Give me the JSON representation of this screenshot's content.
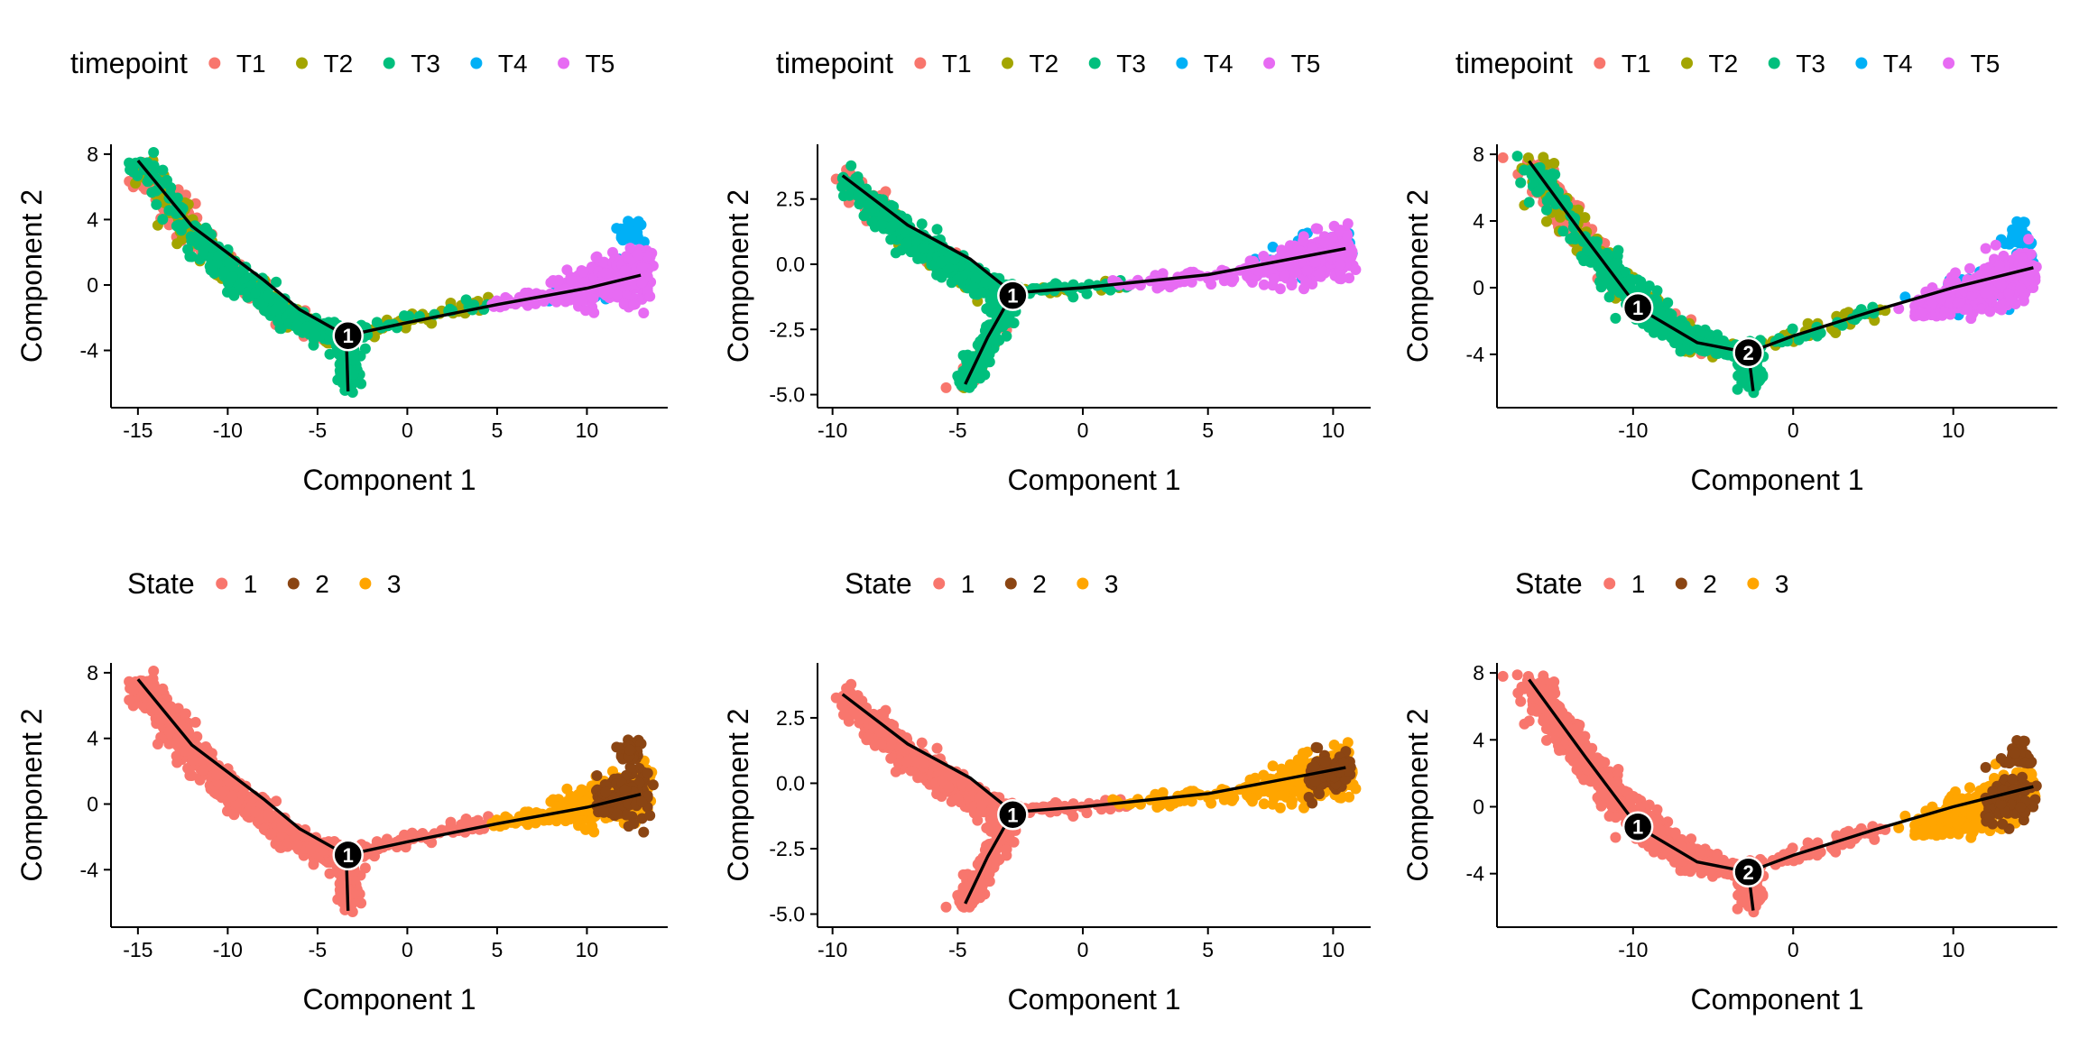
{
  "colors": {
    "T1": "#F8766D",
    "T2": "#A3A500",
    "T3": "#00BF7D",
    "T4": "#00B0F6",
    "T5": "#E76BF3",
    "state_1": "#F8766D",
    "state_2": "#8B4513",
    "state_3": "#FFA500"
  },
  "chart_data": [
    {
      "type": "scatter",
      "variant": "A",
      "color_by": "timepoint",
      "legend_title": "timepoint",
      "legend_position": "top",
      "legend_entries": [
        "T1",
        "T2",
        "T3",
        "T4",
        "T5"
      ],
      "xlabel": "Component 1",
      "ylabel": "Component 2",
      "xlim": [
        -16.5,
        14.5
      ],
      "ylim": [
        -7.5,
        8.6
      ],
      "x_ticks": [
        -15,
        -10,
        -5,
        0,
        5,
        10
      ],
      "x_tick_labels": [
        "-15",
        "-10",
        "-5",
        "0",
        "5",
        "10"
      ],
      "y_ticks": [
        -4,
        0,
        4,
        8
      ],
      "y_tick_labels": [
        "-4",
        "0",
        "4",
        "8"
      ],
      "trajectory": [
        [
          -15,
          7.6
        ],
        [
          -12,
          3.6
        ],
        [
          -8,
          0.3
        ],
        [
          -6,
          -1.5
        ],
        [
          -3.4,
          -3.1
        ],
        [
          0,
          -2.3
        ],
        [
          5,
          -1.2
        ],
        [
          10,
          -0.2
        ],
        [
          13,
          0.6
        ]
      ],
      "side_branch": [
        [
          -3.4,
          -3.1
        ],
        [
          -3.3,
          -6.5
        ]
      ],
      "branch_points": [
        {
          "label": "1",
          "x": -3.3,
          "y": -3.1
        }
      ]
    },
    {
      "type": "scatter",
      "variant": "B",
      "color_by": "timepoint",
      "legend_title": "timepoint",
      "legend_position": "top",
      "legend_entries": [
        "T1",
        "T2",
        "T3",
        "T4",
        "T5"
      ],
      "xlabel": "Component 1",
      "ylabel": "Component 2",
      "xlim": [
        -10.6,
        11.5
      ],
      "ylim": [
        -5.5,
        4.6
      ],
      "x_ticks": [
        -10,
        -5,
        0,
        5,
        10
      ],
      "x_tick_labels": [
        "-10",
        "-5",
        "0",
        "5",
        "10"
      ],
      "y_ticks": [
        -5,
        -2.5,
        0,
        2.5
      ],
      "y_tick_labels": [
        "-5.0",
        "-2.5",
        "0.0",
        "2.5"
      ],
      "trajectory": [
        [
          -9.6,
          3.4
        ],
        [
          -7,
          1.5
        ],
        [
          -4.5,
          0.2
        ],
        [
          -2.8,
          -1.1
        ],
        [
          0,
          -0.9
        ],
        [
          5,
          -0.4
        ],
        [
          10.5,
          0.6
        ]
      ],
      "side_branch": [
        [
          -2.8,
          -1.1
        ],
        [
          -3.8,
          -2.8
        ],
        [
          -4.7,
          -4.6
        ]
      ],
      "branch_points": [
        {
          "label": "1",
          "x": -2.8,
          "y": -1.2
        }
      ]
    },
    {
      "type": "scatter",
      "variant": "C",
      "color_by": "timepoint",
      "legend_title": "timepoint",
      "legend_position": "top",
      "legend_entries": [
        "T1",
        "T2",
        "T3",
        "T4",
        "T5"
      ],
      "xlabel": "Component 1",
      "ylabel": "Component 2",
      "xlim": [
        -18.5,
        16.5
      ],
      "ylim": [
        -7.2,
        8.6
      ],
      "x_ticks": [
        -10,
        0,
        10
      ],
      "x_tick_labels": [
        "-10",
        "0",
        "10"
      ],
      "y_ticks": [
        -4,
        0,
        4,
        8
      ],
      "y_tick_labels": [
        "-4",
        "0",
        "4",
        "8"
      ],
      "trajectory": [
        [
          -16.5,
          7.6
        ],
        [
          -13,
          3
        ],
        [
          -9.7,
          -1.2
        ],
        [
          -6,
          -3.3
        ],
        [
          -2.8,
          -3.9
        ],
        [
          0,
          -2.9
        ],
        [
          5,
          -1.4
        ],
        [
          10,
          0
        ],
        [
          15,
          1.2
        ]
      ],
      "side_branch": [
        [
          -2.8,
          -3.9
        ],
        [
          -2.5,
          -6.2
        ]
      ],
      "branch_points": [
        {
          "label": "1",
          "x": -9.7,
          "y": -1.2
        },
        {
          "label": "2",
          "x": -2.8,
          "y": -3.9
        }
      ]
    },
    {
      "type": "scatter",
      "variant": "A",
      "color_by": "state",
      "legend_title": "State",
      "legend_position": "top",
      "legend_entries": [
        "1",
        "2",
        "3"
      ],
      "xlabel": "Component 1",
      "ylabel": "Component 2",
      "xlim": [
        -16.5,
        14.5
      ],
      "ylim": [
        -7.5,
        8.6
      ],
      "x_ticks": [
        -15,
        -10,
        -5,
        0,
        5,
        10
      ],
      "x_tick_labels": [
        "-15",
        "-10",
        "-5",
        "0",
        "5",
        "10"
      ],
      "y_ticks": [
        -4,
        0,
        4,
        8
      ],
      "y_tick_labels": [
        "-4",
        "0",
        "4",
        "8"
      ],
      "trajectory": [
        [
          -15,
          7.6
        ],
        [
          -12,
          3.6
        ],
        [
          -8,
          0.3
        ],
        [
          -6,
          -1.5
        ],
        [
          -3.4,
          -3.1
        ],
        [
          0,
          -2.3
        ],
        [
          5,
          -1.2
        ],
        [
          10,
          -0.2
        ],
        [
          13,
          0.6
        ]
      ],
      "side_branch": [
        [
          -3.4,
          -3.1
        ],
        [
          -3.3,
          -6.5
        ]
      ],
      "branch_points": [
        {
          "label": "1",
          "x": -3.3,
          "y": -3.1
        }
      ]
    },
    {
      "type": "scatter",
      "variant": "B",
      "color_by": "state",
      "legend_title": "State",
      "legend_position": "top",
      "legend_entries": [
        "1",
        "2",
        "3"
      ],
      "xlabel": "Component 1",
      "ylabel": "Component 2",
      "xlim": [
        -10.6,
        11.5
      ],
      "ylim": [
        -5.5,
        4.6
      ],
      "x_ticks": [
        -10,
        -5,
        0,
        5,
        10
      ],
      "x_tick_labels": [
        "-10",
        "-5",
        "0",
        "5",
        "10"
      ],
      "y_ticks": [
        -5,
        -2.5,
        0,
        2.5
      ],
      "y_tick_labels": [
        "-5.0",
        "-2.5",
        "0.0",
        "2.5"
      ],
      "trajectory": [
        [
          -9.6,
          3.4
        ],
        [
          -7,
          1.5
        ],
        [
          -4.5,
          0.2
        ],
        [
          -2.8,
          -1.1
        ],
        [
          0,
          -0.9
        ],
        [
          5,
          -0.4
        ],
        [
          10.5,
          0.6
        ]
      ],
      "side_branch": [
        [
          -2.8,
          -1.1
        ],
        [
          -3.8,
          -2.8
        ],
        [
          -4.7,
          -4.6
        ]
      ],
      "branch_points": [
        {
          "label": "1",
          "x": -2.8,
          "y": -1.2
        }
      ]
    },
    {
      "type": "scatter",
      "variant": "C",
      "color_by": "state",
      "legend_title": "State",
      "legend_position": "top",
      "legend_entries": [
        "1",
        "2",
        "3"
      ],
      "xlabel": "Component 1",
      "ylabel": "Component 2",
      "xlim": [
        -18.5,
        16.5
      ],
      "ylim": [
        -7.2,
        8.6
      ],
      "x_ticks": [
        -10,
        0,
        10
      ],
      "x_tick_labels": [
        "-10",
        "0",
        "10"
      ],
      "y_ticks": [
        -4,
        0,
        4,
        8
      ],
      "y_tick_labels": [
        "-4",
        "0",
        "4",
        "8"
      ],
      "trajectory": [
        [
          -16.5,
          7.6
        ],
        [
          -13,
          3
        ],
        [
          -9.7,
          -1.2
        ],
        [
          -6,
          -3.3
        ],
        [
          -2.8,
          -3.9
        ],
        [
          0,
          -2.9
        ],
        [
          5,
          -1.4
        ],
        [
          10,
          0
        ],
        [
          15,
          1.2
        ]
      ],
      "side_branch": [
        [
          -2.8,
          -3.9
        ],
        [
          -2.5,
          -6.2
        ]
      ],
      "branch_points": [
        {
          "label": "1",
          "x": -9.7,
          "y": -1.2
        },
        {
          "label": "2",
          "x": -2.8,
          "y": -3.9
        }
      ]
    }
  ]
}
